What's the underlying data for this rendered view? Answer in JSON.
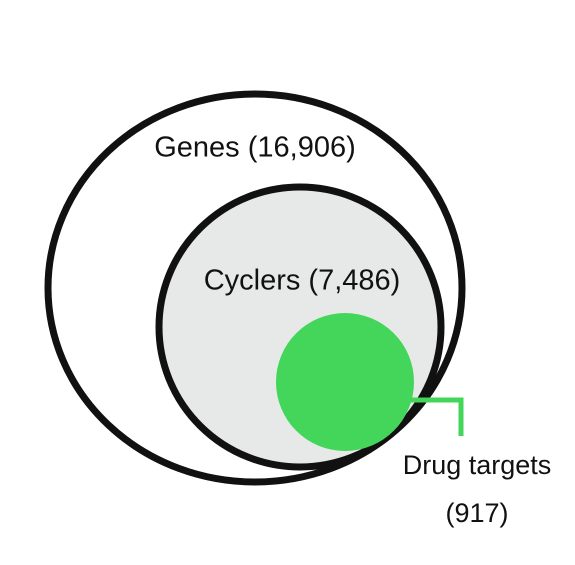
{
  "nodes": [
    {
      "label": "Genes (16,906)"
    },
    {
      "label": "Cyclers (7,486)"
    },
    {
      "label": "Drug targets",
      "sublabel": "(917)"
    }
  ]
}
